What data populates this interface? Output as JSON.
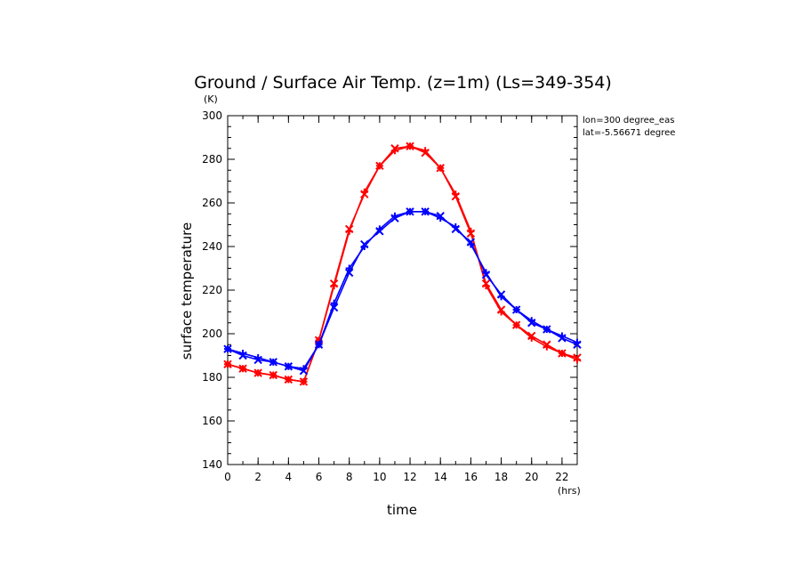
{
  "chart_data": {
    "type": "line",
    "title": "Ground / Surface Air Temp. (z=1m) (Ls=349-354)",
    "xlabel": "time",
    "xunit": "(hrs)",
    "ylabel": "surface temperature",
    "yunit": "(K)",
    "annotations": [
      "lon=300 degree_eas",
      "lat=-5.56671 degree"
    ],
    "xlim": [
      0,
      23
    ],
    "ylim": [
      140,
      300
    ],
    "xticks": [
      "0",
      "2",
      "4",
      "6",
      "8",
      "10",
      "12",
      "14",
      "16",
      "18",
      "20",
      "22"
    ],
    "yticks": [
      "140",
      "160",
      "180",
      "200",
      "220",
      "240",
      "260",
      "280",
      "300"
    ],
    "grid": false,
    "x": [
      0,
      1,
      2,
      3,
      4,
      5,
      6,
      7,
      8,
      9,
      10,
      11,
      12,
      13,
      14,
      15,
      16,
      17,
      18,
      19,
      20,
      21,
      22,
      23
    ],
    "series": [
      {
        "color": "#ff0000",
        "marker": "plus",
        "values": [
          186,
          184,
          182,
          181,
          179,
          178,
          197,
          222,
          247,
          265,
          277,
          284,
          286,
          284,
          276,
          264,
          247,
          222,
          210,
          204,
          198,
          194,
          191,
          188
        ]
      },
      {
        "color": "#ff0000",
        "marker": "x",
        "values": [
          186,
          184,
          182,
          181,
          179,
          178,
          197,
          223,
          248,
          264,
          277,
          285,
          286,
          283,
          276,
          263,
          246,
          223,
          211,
          204,
          199,
          195,
          191,
          189
        ]
      },
      {
        "color": "#0000ff",
        "marker": "plus",
        "values": [
          193,
          191,
          189,
          187,
          185,
          184,
          195,
          214,
          230,
          240,
          248,
          254,
          256,
          256,
          253,
          249,
          241,
          228,
          217,
          211,
          206,
          202,
          199,
          196
        ]
      },
      {
        "color": "#0000ff",
        "marker": "x",
        "values": [
          193,
          190,
          188,
          187,
          185,
          183,
          195,
          212,
          228,
          241,
          247,
          253,
          256,
          256,
          254,
          248,
          242,
          227,
          218,
          211,
          205,
          202,
          198,
          195
        ]
      }
    ]
  }
}
